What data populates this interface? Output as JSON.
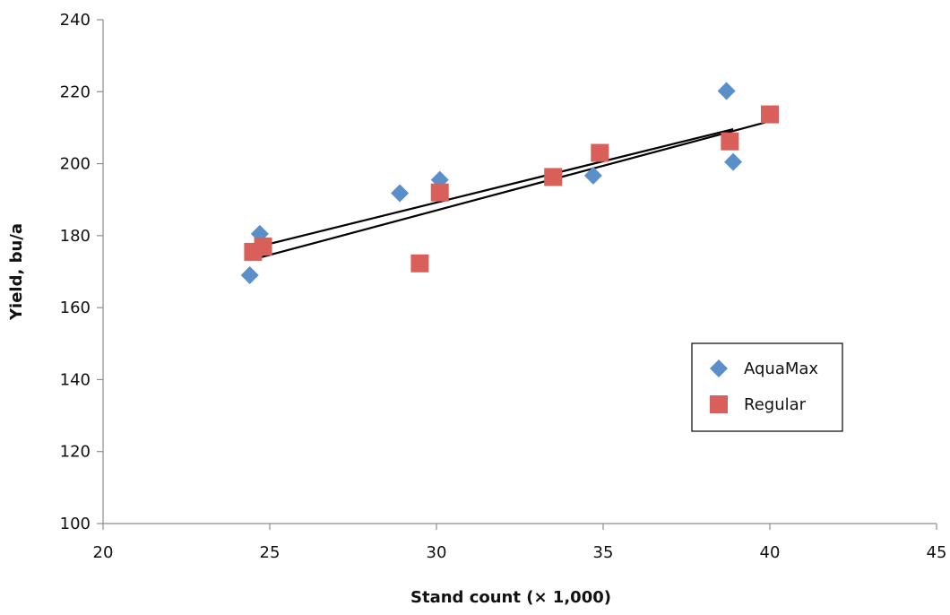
{
  "chart_data": {
    "type": "scatter",
    "title": "",
    "xlabel": "Stand count (× 1,000)",
    "ylabel": "Yield, bu/a",
    "xlim": [
      20,
      45
    ],
    "ylim": [
      100,
      240
    ],
    "x_ticks": [
      "20",
      "25",
      "30",
      "35",
      "40",
      "45"
    ],
    "y_ticks": [
      "100",
      "120",
      "140",
      "160",
      "180",
      "200",
      "220",
      "240"
    ],
    "grid": false,
    "legend_position": "right",
    "series": [
      {
        "name": "AquaMax",
        "marker": "diamond",
        "color": "#5b8fc9",
        "points": [
          [
            24.4,
            169
          ],
          [
            24.7,
            180.5
          ],
          [
            28.9,
            191.8
          ],
          [
            30.1,
            195.5
          ],
          [
            34.7,
            196.7
          ],
          [
            38.7,
            220.2
          ],
          [
            38.9,
            200.5
          ]
        ],
        "trendline": [
          [
            24.5,
            176.6
          ],
          [
            38.9,
            209.6
          ]
        ]
      },
      {
        "name": "Regular",
        "marker": "square",
        "color": "#d9605a",
        "points": [
          [
            24.5,
            175.5
          ],
          [
            24.8,
            177
          ],
          [
            29.5,
            172.3
          ],
          [
            30.1,
            192
          ],
          [
            33.5,
            196.3
          ],
          [
            34.9,
            203
          ],
          [
            38.8,
            206.2
          ],
          [
            40,
            213.7
          ]
        ],
        "trendline": [
          [
            24.5,
            173.4
          ],
          [
            40,
            211.8
          ]
        ]
      }
    ]
  }
}
